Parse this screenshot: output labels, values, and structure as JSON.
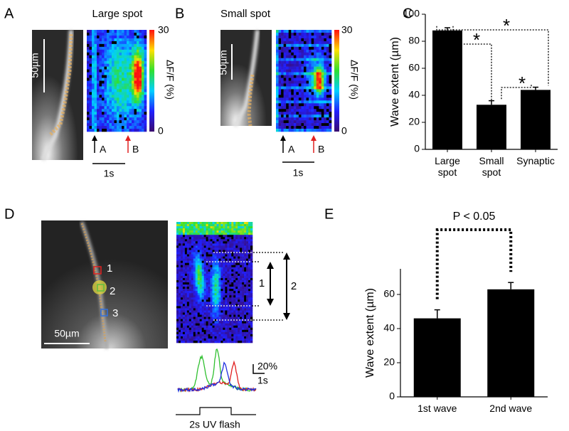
{
  "panels": {
    "labels": [
      "A",
      "B",
      "C",
      "D",
      "E"
    ]
  },
  "panel_a": {
    "title": "Large spot",
    "scale_bar": "50µm",
    "colorbar_label": "ΔF/F (%)",
    "colorbar_max": "30",
    "colorbar_min": "0",
    "arrow_labels": [
      "A",
      "B"
    ],
    "time_bar": "1s"
  },
  "panel_b": {
    "title": "Small spot",
    "scale_bar": "50µm",
    "colorbar_label": "ΔF/F (%)",
    "colorbar_max": "30",
    "colorbar_min": "0",
    "arrow_labels": [
      "A",
      "B"
    ],
    "time_bar": "1s"
  },
  "panel_d": {
    "scale_bar": "50µm",
    "roi_labels": [
      "1",
      "2",
      "3"
    ],
    "bracket_labels": [
      "1",
      "2"
    ],
    "amplitude_bar": "20%",
    "time_bar": "1s",
    "stimulus_label": "2s UV flash"
  },
  "chart_data": [
    {
      "type": "bar",
      "ylabel": "Wave extent (µm)",
      "categories": [
        "Large spot",
        "Small spot",
        "Synaptic"
      ],
      "values": [
        88,
        33,
        44
      ],
      "errors": [
        2,
        3,
        2
      ],
      "color": "#000000",
      "ylim": [
        0,
        100
      ],
      "yticks": [
        0,
        20,
        40,
        60,
        80,
        100
      ],
      "significance": [
        "*",
        "*",
        "*"
      ]
    },
    {
      "type": "bar",
      "ylabel": "Wave extent (µm)",
      "categories": [
        "1st wave",
        "2nd wave"
      ],
      "values": [
        46,
        63
      ],
      "errors": [
        5,
        4
      ],
      "color": "#000000",
      "ylim": [
        0,
        75
      ],
      "yticks": [
        0,
        20,
        40,
        60
      ],
      "annotation": "P < 0.05"
    }
  ]
}
